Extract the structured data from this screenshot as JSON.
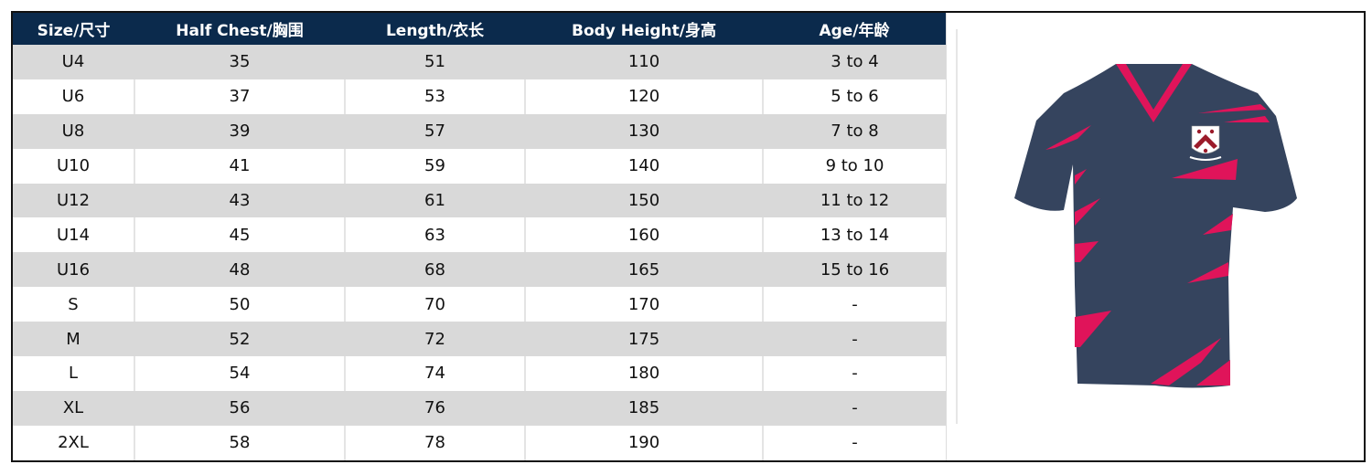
{
  "table": {
    "headers": [
      "Size/尺寸",
      "Half Chest/胸围",
      "Length/衣长",
      "Body Height/身高",
      "Age/年龄"
    ],
    "rows": [
      [
        "U4",
        "35",
        "51",
        "110",
        "3 to 4"
      ],
      [
        "U6",
        "37",
        "53",
        "120",
        "5 to 6"
      ],
      [
        "U8",
        "39",
        "57",
        "130",
        "7 to 8"
      ],
      [
        "U10",
        "41",
        "59",
        "140",
        "9 to 10"
      ],
      [
        "U12",
        "43",
        "61",
        "150",
        "11 to 12"
      ],
      [
        "U14",
        "45",
        "63",
        "160",
        "13 to 14"
      ],
      [
        "U16",
        "48",
        "68",
        "165",
        "15 to 16"
      ],
      [
        "S",
        "50",
        "70",
        "170",
        "-"
      ],
      [
        "M",
        "52",
        "72",
        "175",
        "-"
      ],
      [
        "L",
        "54",
        "74",
        "180",
        "-"
      ],
      [
        "XL",
        "56",
        "76",
        "185",
        "-"
      ],
      [
        "2XL",
        "58",
        "78",
        "190",
        "-"
      ]
    ]
  },
  "colors": {
    "header_bg": "#0b2a4c",
    "row_alt": "#d9d9d9",
    "shirt_body": "#35445e",
    "shirt_accent": "#e0145a"
  },
  "image": {
    "icon": "jersey-shirt-icon"
  }
}
